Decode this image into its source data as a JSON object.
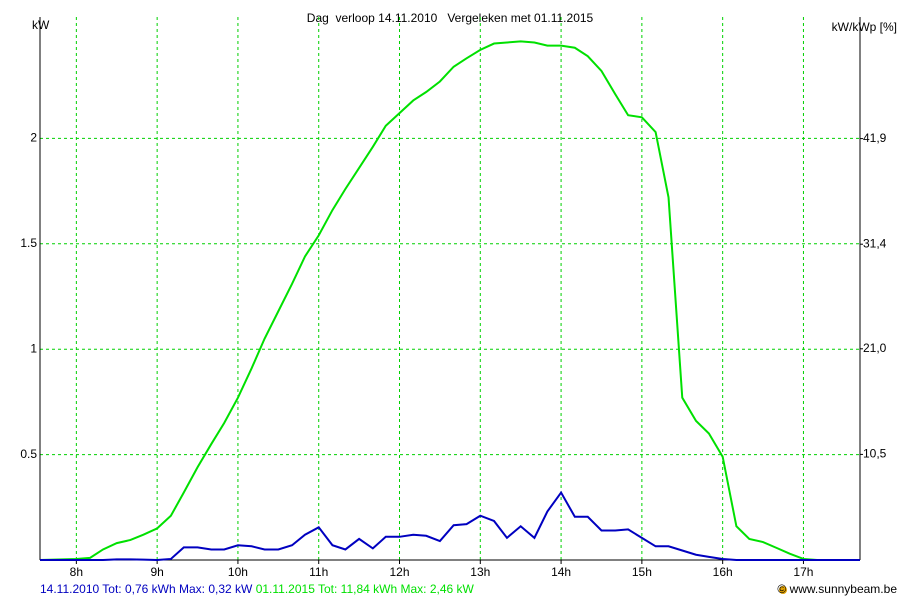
{
  "chart_data": {
    "type": "line",
    "title": "Dag  verloop 14.11.2010   Vergeleken met 01.11.2015",
    "y_label": "kW",
    "y2_label": "kW/kWp [%]",
    "credit": "© www.sunnybeam.be",
    "grid": true,
    "x": [
      7.55,
      8,
      8.17,
      8.33,
      8.5,
      8.67,
      8.83,
      9,
      9.17,
      9.33,
      9.5,
      9.67,
      9.83,
      10,
      10.17,
      10.33,
      10.5,
      10.67,
      10.83,
      11,
      11.17,
      11.33,
      11.5,
      11.67,
      11.83,
      12,
      12.17,
      12.33,
      12.5,
      12.67,
      12.83,
      13,
      13.17,
      13.33,
      13.5,
      13.67,
      13.83,
      14,
      14.17,
      14.33,
      14.5,
      14.67,
      14.83,
      15,
      15.17,
      15.33,
      15.5,
      15.67,
      15.83,
      16,
      16.17,
      16.33,
      16.5,
      16.67,
      16.83,
      17,
      17.17,
      17.7
    ],
    "series": [
      {
        "name": "14.11.2010",
        "summary": "Tot: 0,76 kWh Max: 0,32 kW",
        "color": "#0000c0",
        "values": [
          0,
          0,
          0,
          0,
          0.003,
          0.003,
          0.002,
          0,
          0.005,
          0.06,
          0.06,
          0.05,
          0.05,
          0.07,
          0.065,
          0.05,
          0.05,
          0.07,
          0.12,
          0.155,
          0.07,
          0.05,
          0.1,
          0.055,
          0.11,
          0.11,
          0.12,
          0.115,
          0.09,
          0.165,
          0.17,
          0.21,
          0.185,
          0.105,
          0.16,
          0.105,
          0.23,
          0.32,
          0.205,
          0.205,
          0.14,
          0.14,
          0.145,
          0.105,
          0.065,
          0.065,
          0.045,
          0.025,
          0.015,
          0.005,
          0,
          0,
          0,
          0,
          0,
          0,
          0,
          0
        ]
      },
      {
        "name": "01.11.2015",
        "summary": "Tot: 11,84 kWh Max: 2,46 kW",
        "color": "#00e000",
        "values": [
          0,
          0.005,
          0.01,
          0.05,
          0.08,
          0.095,
          0.12,
          0.15,
          0.21,
          0.32,
          0.44,
          0.55,
          0.65,
          0.77,
          0.91,
          1.05,
          1.18,
          1.31,
          1.44,
          1.54,
          1.66,
          1.76,
          1.86,
          1.96,
          2.06,
          2.12,
          2.18,
          2.22,
          2.27,
          2.34,
          2.38,
          2.42,
          2.45,
          2.455,
          2.46,
          2.455,
          2.44,
          2.44,
          2.43,
          2.39,
          2.32,
          2.21,
          2.11,
          2.1,
          2.03,
          1.72,
          0.77,
          0.66,
          0.6,
          0.49,
          0.16,
          0.1,
          0.085,
          0.057,
          0.03,
          0.005,
          0,
          0
        ]
      }
    ],
    "xlim": [
      7.55,
      17.7
    ],
    "xticks": [
      {
        "value": 8,
        "label": "8h"
      },
      {
        "value": 9,
        "label": "9h"
      },
      {
        "value": 10,
        "label": "10h"
      },
      {
        "value": 11,
        "label": "11h"
      },
      {
        "value": 12,
        "label": "12h"
      },
      {
        "value": 13,
        "label": "13h"
      },
      {
        "value": 14,
        "label": "14h"
      },
      {
        "value": 15,
        "label": "15h"
      },
      {
        "value": 16,
        "label": "16h"
      },
      {
        "value": 17,
        "label": "17h"
      }
    ],
    "ylim": [
      0,
      2.5
    ],
    "yticks": [
      0.5,
      1,
      1.5,
      2
    ],
    "y2lim": [
      0,
      52.4
    ],
    "y2ticks": [
      {
        "value": 10.5,
        "label": "10,5"
      },
      {
        "value": 21.0,
        "label": "21,0"
      },
      {
        "value": 31.4,
        "label": "31,4"
      },
      {
        "value": 41.9,
        "label": "41,9"
      }
    ]
  }
}
